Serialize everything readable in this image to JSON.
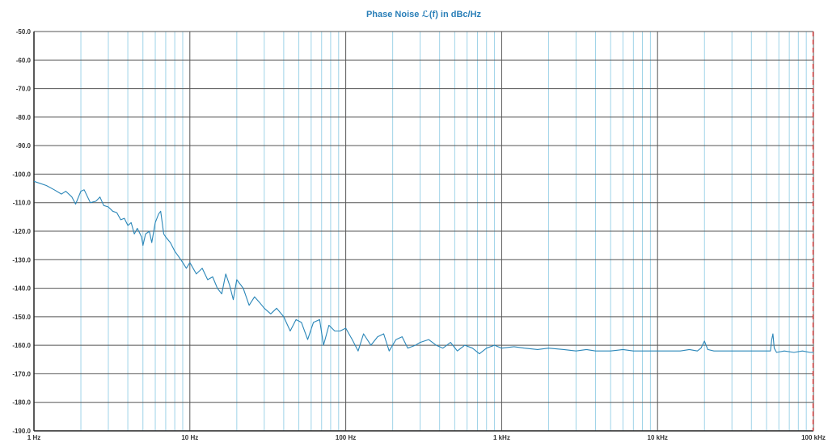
{
  "chart_data": {
    "type": "line",
    "title": "Phase Noise ℒ(f) in dBc/Hz",
    "x_scale": "log",
    "xlim": [
      1,
      100000
    ],
    "ylim": [
      -190,
      -50
    ],
    "grid": true,
    "x_tick_values": [
      1,
      10,
      100,
      1000,
      10000,
      100000
    ],
    "x_tick_labels": [
      "1 Hz",
      "10 Hz",
      "100 Hz",
      "1 kHz",
      "10 kHz",
      "100 kHz"
    ],
    "y_tick_values": [
      -50,
      -60,
      -70,
      -80,
      -90,
      -100,
      -110,
      -120,
      -130,
      -140,
      -150,
      -160,
      -170,
      -180,
      -190
    ],
    "y_tick_labels": [
      "-50.0",
      "-60.0",
      "-70.0",
      "-80.0",
      "-90.0",
      "-100.0",
      "-110.0",
      "-120.0",
      "-130.0",
      "-140.0",
      "-150.0",
      "-160.0",
      "-170.0",
      "-180.0",
      "-190.0"
    ],
    "marker_line": {
      "x": 100000,
      "style": "dashed",
      "color": "#e03030"
    },
    "series": [
      {
        "color": "#2a86b8",
        "points": [
          [
            1,
            -102.5
          ],
          [
            1.2,
            -104
          ],
          [
            1.35,
            -105.5
          ],
          [
            1.5,
            -107
          ],
          [
            1.6,
            -106
          ],
          [
            1.75,
            -108
          ],
          [
            1.85,
            -110.5
          ],
          [
            2.0,
            -106
          ],
          [
            2.1,
            -105.5
          ],
          [
            2.3,
            -110
          ],
          [
            2.5,
            -109.5
          ],
          [
            2.65,
            -108
          ],
          [
            2.8,
            -111
          ],
          [
            3.0,
            -111.5
          ],
          [
            3.2,
            -113
          ],
          [
            3.4,
            -113.5
          ],
          [
            3.6,
            -116
          ],
          [
            3.8,
            -115.5
          ],
          [
            4.0,
            -118
          ],
          [
            4.2,
            -117
          ],
          [
            4.4,
            -121
          ],
          [
            4.6,
            -119
          ],
          [
            4.9,
            -122
          ],
          [
            5.0,
            -125
          ],
          [
            5.2,
            -121
          ],
          [
            5.5,
            -120
          ],
          [
            5.7,
            -124
          ],
          [
            6.0,
            -117
          ],
          [
            6.3,
            -114
          ],
          [
            6.5,
            -113
          ],
          [
            6.8,
            -121
          ],
          [
            7.0,
            -122
          ],
          [
            7.5,
            -124
          ],
          [
            8.0,
            -127
          ],
          [
            8.5,
            -129
          ],
          [
            9.0,
            -131
          ],
          [
            9.5,
            -133
          ],
          [
            10,
            -131
          ],
          [
            11,
            -135
          ],
          [
            12,
            -133
          ],
          [
            13,
            -137
          ],
          [
            14,
            -136
          ],
          [
            15,
            -140
          ],
          [
            16,
            -142
          ],
          [
            17,
            -135
          ],
          [
            18,
            -139
          ],
          [
            19,
            -144
          ],
          [
            20,
            -137
          ],
          [
            22,
            -140
          ],
          [
            24,
            -146
          ],
          [
            26,
            -143
          ],
          [
            28,
            -145
          ],
          [
            30,
            -147
          ],
          [
            33,
            -149
          ],
          [
            36,
            -147
          ],
          [
            40,
            -150
          ],
          [
            44,
            -155
          ],
          [
            48,
            -151
          ],
          [
            52,
            -152
          ],
          [
            57,
            -158
          ],
          [
            62,
            -152
          ],
          [
            68,
            -151
          ],
          [
            72,
            -160
          ],
          [
            78,
            -153
          ],
          [
            85,
            -155
          ],
          [
            92,
            -155
          ],
          [
            100,
            -154
          ],
          [
            110,
            -158
          ],
          [
            120,
            -162
          ],
          [
            130,
            -156
          ],
          [
            145,
            -160
          ],
          [
            160,
            -157
          ],
          [
            175,
            -156
          ],
          [
            190,
            -162
          ],
          [
            210,
            -158
          ],
          [
            230,
            -157
          ],
          [
            250,
            -161
          ],
          [
            280,
            -160
          ],
          [
            300,
            -159
          ],
          [
            340,
            -158
          ],
          [
            380,
            -160
          ],
          [
            420,
            -161
          ],
          [
            470,
            -159
          ],
          [
            520,
            -162
          ],
          [
            580,
            -160
          ],
          [
            650,
            -161
          ],
          [
            720,
            -163
          ],
          [
            800,
            -161
          ],
          [
            900,
            -160
          ],
          [
            1000,
            -161
          ],
          [
            1200,
            -160.5
          ],
          [
            1400,
            -161
          ],
          [
            1700,
            -161.5
          ],
          [
            2000,
            -161
          ],
          [
            2500,
            -161.5
          ],
          [
            3000,
            -162
          ],
          [
            3500,
            -161.5
          ],
          [
            4000,
            -162
          ],
          [
            5000,
            -162
          ],
          [
            6000,
            -161.5
          ],
          [
            7000,
            -162
          ],
          [
            8000,
            -162
          ],
          [
            10000,
            -162
          ],
          [
            12000,
            -162
          ],
          [
            14000,
            -162
          ],
          [
            16000,
            -161.5
          ],
          [
            18000,
            -162
          ],
          [
            19000,
            -161
          ],
          [
            20000,
            -158.5
          ],
          [
            21000,
            -161.5
          ],
          [
            23000,
            -162
          ],
          [
            28000,
            -162
          ],
          [
            35000,
            -162
          ],
          [
            45000,
            -162
          ],
          [
            53000,
            -162
          ],
          [
            54000,
            -158
          ],
          [
            55000,
            -156
          ],
          [
            56000,
            -161
          ],
          [
            58000,
            -162.5
          ],
          [
            65000,
            -162
          ],
          [
            75000,
            -162.5
          ],
          [
            85000,
            -162
          ],
          [
            95000,
            -162.5
          ],
          [
            100000,
            -162.5
          ]
        ]
      }
    ]
  },
  "colors": {
    "title": "#2a7fb8",
    "line": "#2a86b8",
    "major_grid": "#555555",
    "minor_grid": "#9fd3e8",
    "marker": "#e03030"
  }
}
